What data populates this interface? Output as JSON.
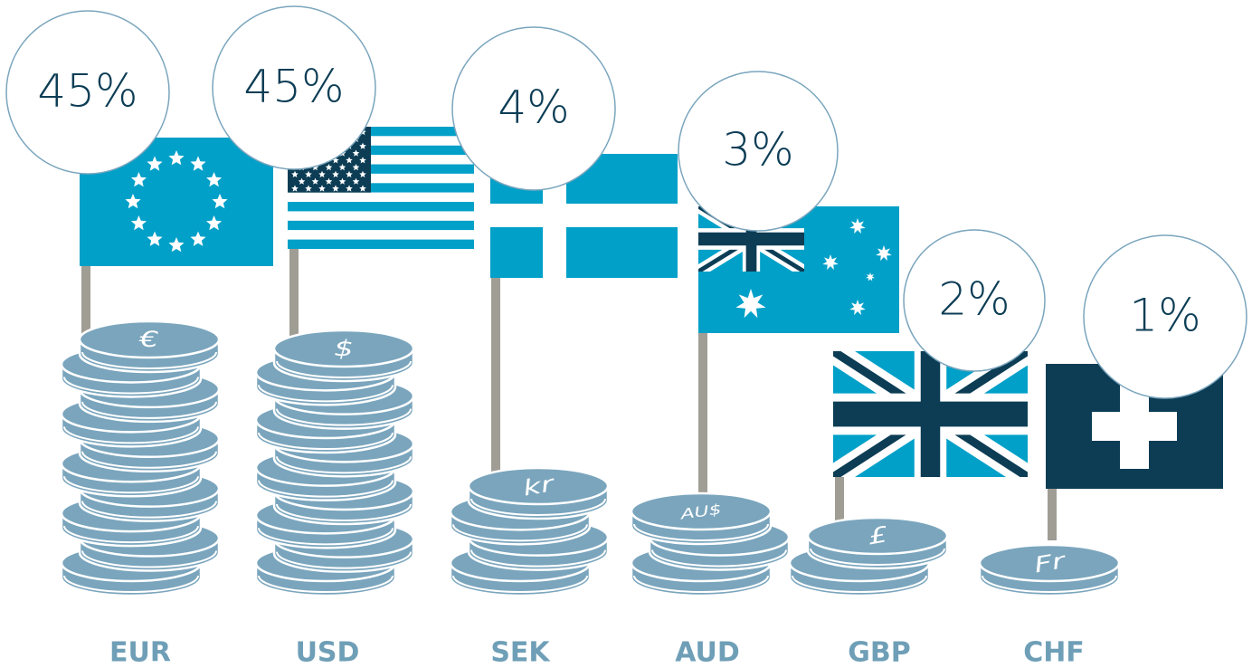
{
  "chart_data": {
    "type": "pictorial",
    "categories": [
      "EUR",
      "USD",
      "SEK",
      "AUD",
      "GBP",
      "CHF"
    ],
    "values": [
      45,
      45,
      4,
      3,
      2,
      1
    ],
    "value_labels": [
      "45%",
      "45%",
      "4%",
      "3%",
      "2%",
      "1%"
    ],
    "symbols": [
      "€",
      "$",
      "kr",
      "AU$",
      "£",
      "Fr"
    ],
    "color": "#7aa5bd"
  }
}
